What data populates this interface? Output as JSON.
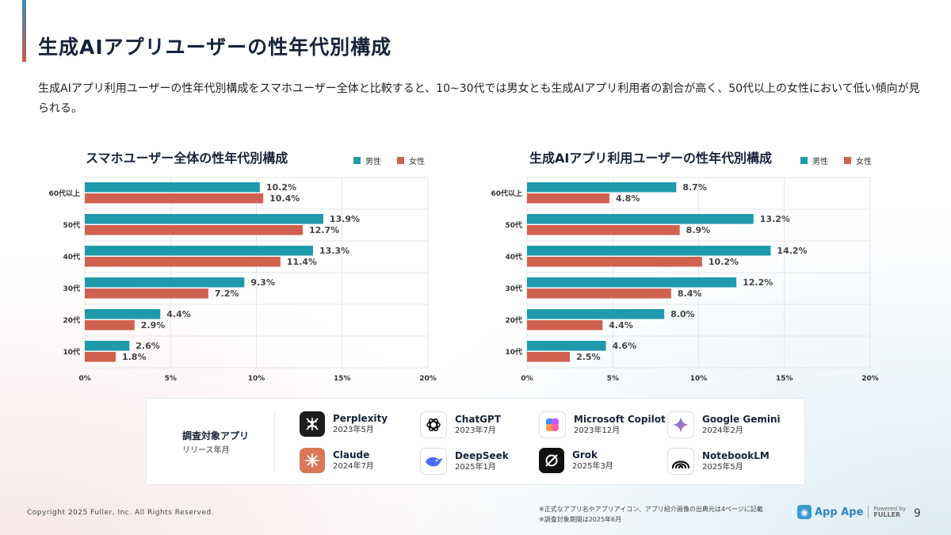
{
  "page": {
    "title": "生成AIアプリユーザーの性年代別構成",
    "description": "生成AIアプリ利用ユーザーの性年代別構成をスマホユーザー全体と比較すると、10~30代では男女とも生成AIアプリ利用者の割合が高く、50代以上の女性において低い傾向が見られる。",
    "page_number": "9",
    "copyright": "Copyright 2025 Fuller, Inc. All Rights Reserved.",
    "notes": [
      "※正式なアプリ名やアプリアイコン、アプリ紹介画像の出典元は4ページに記載",
      "※調査対象期間は2025年6月"
    ],
    "logo_text": "App Ape",
    "logo_powered": "Powered by",
    "logo_company": "FULLER"
  },
  "colors": {
    "male": "#1f9aab",
    "female": "#d0604f"
  },
  "chart_data": [
    {
      "type": "bar",
      "orientation": "horizontal",
      "title": "スマホユーザー全体の性年代別構成",
      "categories": [
        "60代以上",
        "50代",
        "40代",
        "30代",
        "20代",
        "10代"
      ],
      "series": [
        {
          "name": "男性",
          "values": [
            10.2,
            13.9,
            13.3,
            9.3,
            4.4,
            2.6
          ]
        },
        {
          "name": "女性",
          "values": [
            10.4,
            12.7,
            11.4,
            7.2,
            2.9,
            1.8
          ]
        }
      ],
      "xlim": [
        0,
        20
      ],
      "xticks": [
        "0%",
        "5%",
        "10%",
        "15%",
        "20%"
      ],
      "legend_position": "top-right",
      "grid": true
    },
    {
      "type": "bar",
      "orientation": "horizontal",
      "title": "生成AIアプリ利用ユーザーの性年代別構成",
      "categories": [
        "60代以上",
        "50代",
        "40代",
        "30代",
        "20代",
        "10代"
      ],
      "series": [
        {
          "name": "男性",
          "values": [
            8.7,
            13.2,
            14.2,
            12.2,
            8.0,
            4.6
          ]
        },
        {
          "name": "女性",
          "values": [
            4.8,
            8.9,
            10.2,
            8.4,
            4.4,
            2.5
          ]
        }
      ],
      "xlim": [
        0,
        20
      ],
      "xticks": [
        "0%",
        "5%",
        "10%",
        "15%",
        "20%"
      ],
      "legend_position": "top-right",
      "grid": true
    }
  ],
  "apps_panel": {
    "label": "調査対象アプリ",
    "sublabel": "リリース年月",
    "apps": [
      {
        "name": "Perplexity",
        "date": "2023年5月",
        "icon": "perplexity-icon",
        "color": "#1d1d1d"
      },
      {
        "name": "ChatGPT",
        "date": "2023年7月",
        "icon": "chatgpt-icon",
        "color": "#ffffff"
      },
      {
        "name": "Microsoft Copilot",
        "date": "2023年12月",
        "icon": "copilot-icon",
        "color": "#ffffff"
      },
      {
        "name": "Google Gemini",
        "date": "2024年2月",
        "icon": "gemini-icon",
        "color": "#ffffff"
      },
      {
        "name": "Claude",
        "date": "2024年7月",
        "icon": "claude-icon",
        "color": "#d97757"
      },
      {
        "name": "DeepSeek",
        "date": "2025年1月",
        "icon": "deepseek-icon",
        "color": "#ffffff"
      },
      {
        "name": "Grok",
        "date": "2025年3月",
        "icon": "grok-icon",
        "color": "#111111"
      },
      {
        "name": "NotebookLM",
        "date": "2025年5月",
        "icon": "notebooklm-icon",
        "color": "#ffffff"
      }
    ]
  }
}
